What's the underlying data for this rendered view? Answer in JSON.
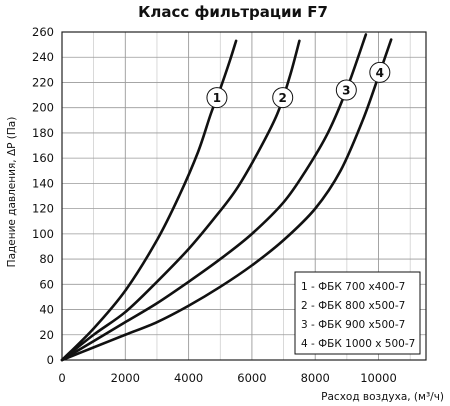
{
  "chart_data": {
    "type": "line",
    "title": "Класс фильтрации F7",
    "xlabel": "Расход воздуха, (м³/ч)",
    "ylabel": "Падение давления,  ΔP (Па)",
    "xlim": [
      0,
      11500
    ],
    "ylim": [
      0,
      260
    ],
    "xticks": [
      0,
      2000,
      4000,
      6000,
      8000,
      10000
    ],
    "yticks": [
      0,
      20,
      40,
      60,
      80,
      100,
      120,
      140,
      160,
      180,
      200,
      220,
      240,
      260
    ],
    "x_minor_step": 1000,
    "grid": true,
    "legend_position": "bottom-right",
    "series": [
      {
        "name": "1 - ФБК 700 x400-7",
        "callout": "1",
        "x": [
          0,
          1000,
          2000,
          3000,
          3700,
          4300,
          4700,
          5000,
          5300,
          5500
        ],
        "y": [
          0,
          25,
          55,
          95,
          130,
          165,
          195,
          215,
          237,
          253
        ]
      },
      {
        "name": "2 - ФБК 800 x500-7",
        "callout": "2",
        "x": [
          0,
          1000,
          2000,
          3000,
          4000,
          4800,
          5500,
          6200,
          6800,
          7200,
          7500
        ],
        "y": [
          0,
          20,
          38,
          62,
          88,
          112,
          135,
          165,
          195,
          225,
          253
        ]
      },
      {
        "name": "3 - ФБК 900 x500-7",
        "callout": "3",
        "x": [
          0,
          1000,
          2000,
          3000,
          4000,
          5000,
          6000,
          7000,
          7700,
          8400,
          9000,
          9600
        ],
        "y": [
          0,
          15,
          30,
          45,
          62,
          80,
          100,
          125,
          150,
          180,
          215,
          258
        ]
      },
      {
        "name": "4 - ФБК 1000 x 500-7",
        "callout": "4",
        "x": [
          0,
          1000,
          2000,
          3000,
          4000,
          5000,
          6000,
          7000,
          8000,
          8800,
          9500,
          10000,
          10400
        ],
        "y": [
          0,
          10,
          20,
          30,
          43,
          58,
          75,
          95,
          120,
          150,
          190,
          225,
          254
        ]
      }
    ]
  }
}
